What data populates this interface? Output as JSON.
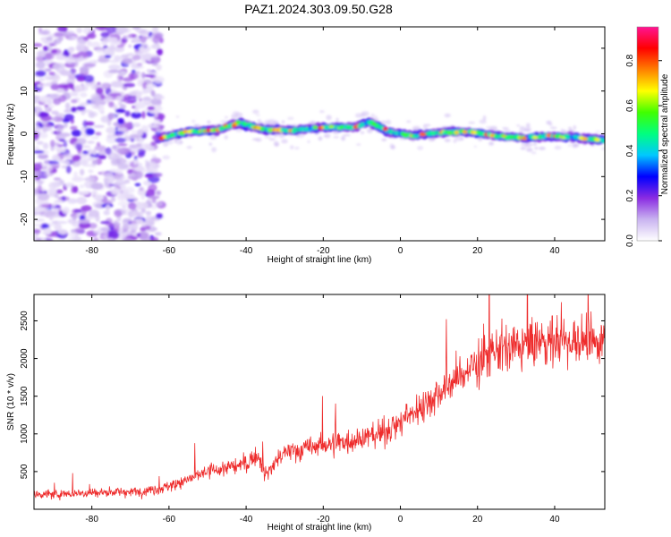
{
  "title": "PAZ1.2024.303.09.50.G28",
  "chart_data": [
    {
      "type": "heatmap",
      "xlabel": "Height of straight line (km)",
      "ylabel": "Frequency (Hz)",
      "xlim": [
        -95,
        53
      ],
      "ylim": [
        -25,
        25
      ],
      "x_ticks": [
        -80,
        -60,
        -40,
        -20,
        0,
        20,
        40
      ],
      "y_ticks": [
        -20,
        -10,
        0,
        10,
        20
      ],
      "colorbar": {
        "label": "Normalized spectral amplitude",
        "range": [
          0,
          0.95
        ],
        "ticks": [
          0.0,
          0.2,
          0.4,
          0.6,
          0.8
        ],
        "colors": [
          "#ffffff",
          "#c9b3f0",
          "#8a2be2",
          "#0000ff",
          "#00c8ff",
          "#00ff80",
          "#40ff00",
          "#ffff00",
          "#ff8000",
          "#ff0000",
          "#ff1493"
        ]
      },
      "ridge": [
        {
          "x": -62,
          "y": -1
        },
        {
          "x": -55,
          "y": 0.5
        },
        {
          "x": -48,
          "y": 0.8
        },
        {
          "x": -42,
          "y": 2.5
        },
        {
          "x": -35,
          "y": 1
        },
        {
          "x": -28,
          "y": 0.8
        },
        {
          "x": -20,
          "y": 1.5
        },
        {
          "x": -12,
          "y": 1.5
        },
        {
          "x": -8,
          "y": 2.8
        },
        {
          "x": -3,
          "y": 0.5
        },
        {
          "x": 3,
          "y": -0.5
        },
        {
          "x": 10,
          "y": 0.3
        },
        {
          "x": 18,
          "y": 0.5
        },
        {
          "x": 25,
          "y": -0.5
        },
        {
          "x": 32,
          "y": -1
        },
        {
          "x": 38,
          "y": -0.5
        },
        {
          "x": 45,
          "y": -0.8
        },
        {
          "x": 53,
          "y": -1.5
        }
      ]
    },
    {
      "type": "line",
      "xlabel": "Height of straight line (km)",
      "ylabel": "SNR (10 * v/v)",
      "xlim": [
        -95,
        53
      ],
      "ylim": [
        0,
        2850
      ],
      "x_ticks": [
        -80,
        -60,
        -40,
        -20,
        0,
        20,
        40
      ],
      "y_ticks": [
        500,
        1000,
        1500,
        2000,
        2500
      ],
      "color": "#ee2b2b",
      "series": [
        {
          "x": [
            -95,
            -90,
            -85,
            -80,
            -75,
            -70,
            -65,
            -60,
            -55,
            -50,
            -45,
            -40,
            -37,
            -35,
            -32,
            -30,
            -25,
            -20,
            -15,
            -10,
            -5,
            0,
            5,
            10,
            15,
            20,
            25,
            30,
            35,
            40,
            45,
            50,
            53
          ],
          "values": [
            200,
            200,
            210,
            220,
            230,
            230,
            250,
            300,
            400,
            500,
            550,
            600,
            750,
            450,
            650,
            750,
            800,
            850,
            900,
            950,
            1000,
            1150,
            1350,
            1550,
            1750,
            1950,
            2100,
            2150,
            2200,
            2250,
            2250,
            2200,
            2250
          ]
        }
      ]
    }
  ]
}
